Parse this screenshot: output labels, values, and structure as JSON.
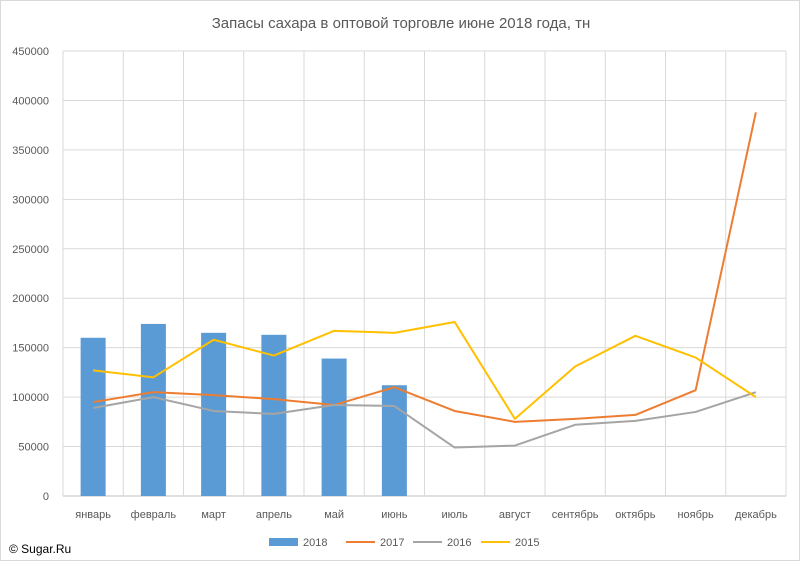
{
  "chart_data": {
    "type": "bar",
    "title": "Запасы сахара в оптовой торговле июне 2018 года, тн",
    "categories": [
      "январь",
      "февраль",
      "март",
      "апрель",
      "май",
      "июнь",
      "июль",
      "август",
      "сентябрь",
      "октябрь",
      "ноябрь",
      "декабрь"
    ],
    "ylim": [
      0,
      450000
    ],
    "yticks": [
      "0",
      "50000",
      "100000",
      "150000",
      "200000",
      "250000",
      "300000",
      "350000",
      "400000",
      "450000"
    ],
    "grid": true,
    "legend_position": "bottom",
    "series": [
      {
        "name": "2018",
        "kind": "bar",
        "color": "#5b9bd5",
        "values": [
          160000,
          174000,
          165000,
          163000,
          139000,
          112000,
          null,
          null,
          null,
          null,
          null,
          null
        ]
      },
      {
        "name": "2017",
        "kind": "line",
        "color": "#ed7d31",
        "values": [
          95000,
          105000,
          102000,
          98000,
          92000,
          110000,
          86000,
          75000,
          78000,
          82000,
          107000,
          388000
        ]
      },
      {
        "name": "2016",
        "kind": "line",
        "color": "#a5a5a5",
        "values": [
          89000,
          100000,
          86000,
          83000,
          92000,
          91000,
          49000,
          51000,
          72000,
          76000,
          85000,
          105000
        ]
      },
      {
        "name": "2015",
        "kind": "line",
        "color": "#ffc000",
        "values": [
          127000,
          120000,
          158000,
          142000,
          167000,
          165000,
          176000,
          78000,
          131000,
          162000,
          140000,
          100000
        ]
      }
    ]
  },
  "copyright": "© Sugar.Ru"
}
